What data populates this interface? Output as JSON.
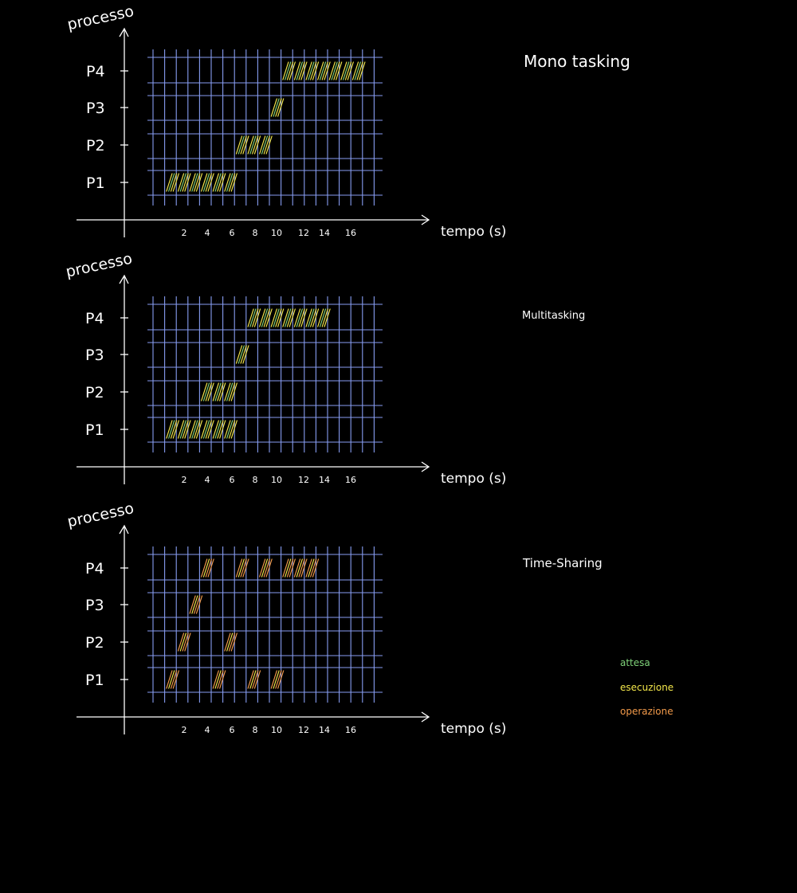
{
  "axis_labels": {
    "y": "processo",
    "x": "tempo (s)"
  },
  "processes": [
    "P1",
    "P2",
    "P3",
    "P4"
  ],
  "time_ticks": [
    "2",
    "4",
    "6",
    "8",
    "10",
    "12",
    "14",
    "16"
  ],
  "colors": {
    "background": "#000000",
    "grid": "#8fa6ff",
    "axis": "#ffffff",
    "attesa": "#7fd37a",
    "esecuzione": "#f2e64a",
    "operazione": "#f29a4a"
  },
  "legend": [
    {
      "key": "attesa",
      "label": "attesa"
    },
    {
      "key": "esecuzione",
      "label": "esecuzione"
    },
    {
      "key": "operazione",
      "label": "operazione"
    }
  ],
  "diagrams": [
    {
      "title": "Mono tasking",
      "blocks": [
        {
          "process": "P1",
          "cols": [
            2,
            3,
            4,
            5,
            6,
            7
          ]
        },
        {
          "process": "P2",
          "cols": [
            8,
            9,
            10
          ]
        },
        {
          "process": "P3",
          "cols": [
            11
          ]
        },
        {
          "process": "P4",
          "cols": [
            12,
            13,
            14,
            15,
            16,
            17,
            18
          ]
        }
      ]
    },
    {
      "title": "Multitasking",
      "blocks": [
        {
          "process": "P1",
          "cols": [
            2,
            3,
            4,
            5,
            6,
            7
          ]
        },
        {
          "process": "P2",
          "cols": [
            5,
            6,
            7
          ]
        },
        {
          "process": "P3",
          "cols": [
            8
          ]
        },
        {
          "process": "P4",
          "cols": [
            9,
            10,
            11,
            12,
            13,
            14,
            15
          ]
        }
      ]
    },
    {
      "title": "Time-Sharing",
      "blocks": [
        {
          "process": "P1",
          "cols": [
            2,
            6,
            9,
            11
          ]
        },
        {
          "process": "P2",
          "cols": [
            3,
            7
          ]
        },
        {
          "process": "P3",
          "cols": [
            4
          ]
        },
        {
          "process": "P4",
          "cols": [
            5,
            8,
            10,
            12,
            13,
            14
          ]
        }
      ]
    }
  ]
}
